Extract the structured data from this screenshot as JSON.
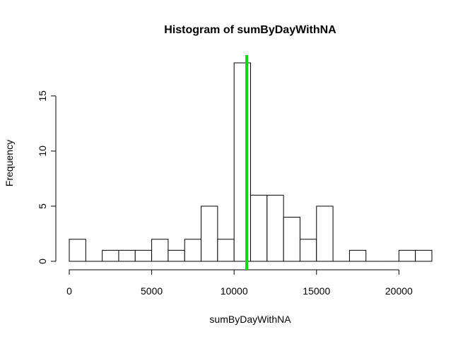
{
  "chart_data": {
    "type": "bar",
    "title": "Histogram of sumByDayWithNA",
    "xlabel": "sumByDayWithNA",
    "ylabel": "Frequency",
    "bin_width": 1000,
    "bins": [
      {
        "start": 0,
        "end": 1000,
        "count": 2
      },
      {
        "start": 1000,
        "end": 2000,
        "count": 0
      },
      {
        "start": 2000,
        "end": 3000,
        "count": 1
      },
      {
        "start": 3000,
        "end": 4000,
        "count": 1
      },
      {
        "start": 4000,
        "end": 5000,
        "count": 1
      },
      {
        "start": 5000,
        "end": 6000,
        "count": 2
      },
      {
        "start": 6000,
        "end": 7000,
        "count": 1
      },
      {
        "start": 7000,
        "end": 8000,
        "count": 2
      },
      {
        "start": 8000,
        "end": 9000,
        "count": 5
      },
      {
        "start": 9000,
        "end": 10000,
        "count": 2
      },
      {
        "start": 10000,
        "end": 11000,
        "count": 18
      },
      {
        "start": 11000,
        "end": 12000,
        "count": 6
      },
      {
        "start": 12000,
        "end": 13000,
        "count": 6
      },
      {
        "start": 13000,
        "end": 14000,
        "count": 4
      },
      {
        "start": 14000,
        "end": 15000,
        "count": 2
      },
      {
        "start": 15000,
        "end": 16000,
        "count": 5
      },
      {
        "start": 16000,
        "end": 17000,
        "count": 0
      },
      {
        "start": 17000,
        "end": 18000,
        "count": 1
      },
      {
        "start": 18000,
        "end": 19000,
        "count": 0
      },
      {
        "start": 19000,
        "end": 20000,
        "count": 0
      },
      {
        "start": 20000,
        "end": 21000,
        "count": 1
      },
      {
        "start": 21000,
        "end": 22000,
        "count": 1
      }
    ],
    "xlim": [
      0,
      22000
    ],
    "ylim": [
      0,
      18
    ],
    "x_ticks": [
      0,
      5000,
      10000,
      15000,
      20000
    ],
    "x_tick_labels": [
      "0",
      "5000",
      "10000",
      "15000",
      "20000"
    ],
    "y_ticks": [
      0,
      5,
      10,
      15
    ],
    "y_tick_labels": [
      "0",
      "5",
      "10",
      "15"
    ],
    "vline": {
      "x": 10766,
      "color": "#00dd00"
    },
    "bar_fill": "#ffffff",
    "bar_stroke": "#000000",
    "grid": false
  }
}
